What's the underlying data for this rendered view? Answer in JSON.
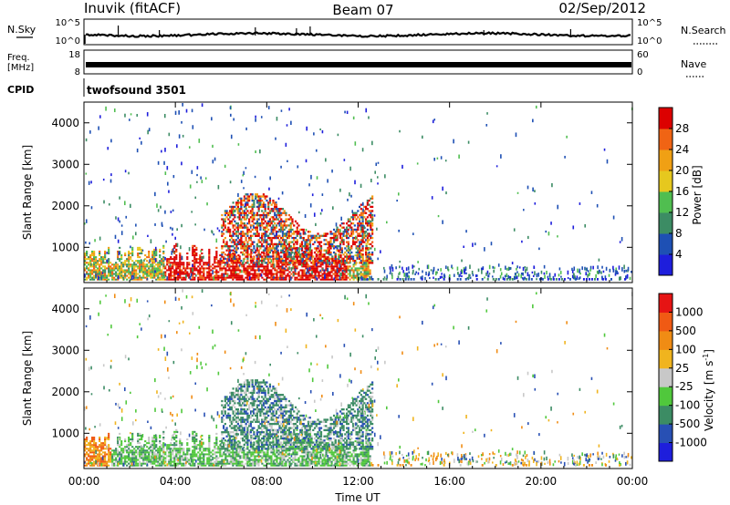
{
  "header": {
    "radar": "Inuvik (fitACF)",
    "beam": "Beam 07",
    "date": "02/Sep/2012"
  },
  "noise_panel": {
    "left_label": "N.Sky",
    "right_label": "N.Search",
    "y_ticks": [
      "10^5",
      "10^0"
    ]
  },
  "freq_panel": {
    "left_label_1": "Freq.",
    "left_label_2": "[MHz]",
    "left_ticks": [
      "18",
      "8"
    ],
    "right_label": "Nave",
    "right_ticks": [
      "60",
      "0"
    ]
  },
  "cpid": {
    "label": "CPID",
    "value": "twofsound 3501"
  },
  "chart_data": [
    {
      "type": "heatmap",
      "parameter": "power",
      "ylabel": "Slant Range [km]",
      "y_ticks": [
        1000,
        2000,
        3000,
        4000
      ],
      "ylim": [
        150,
        4500
      ],
      "x_ticks": [
        "00:00",
        "04:00",
        "08:00",
        "12:00",
        "16:00",
        "20:00",
        "00:00"
      ],
      "xlim_hours": [
        0,
        24
      ],
      "colorbar": {
        "label": "Power [dB]",
        "ticks": [
          "4",
          "8",
          "12",
          "16",
          "20",
          "24",
          "28"
        ],
        "colors": [
          "#1e1edc",
          "#1e50b4",
          "#3c8c64",
          "#50be50",
          "#e6c81e",
          "#f0a014",
          "#f06414",
          "#dc0000"
        ]
      }
    },
    {
      "type": "heatmap",
      "parameter": "velocity",
      "ylabel": "Slant Range [km]",
      "y_ticks": [
        1000,
        2000,
        3000,
        4000
      ],
      "ylim": [
        150,
        4500
      ],
      "x_ticks": [
        "00:00",
        "04:00",
        "08:00",
        "12:00",
        "16:00",
        "20:00",
        "00:00"
      ],
      "xlim_hours": [
        0,
        24
      ],
      "xlabel": "Time UT",
      "colorbar": {
        "label": "Velocity [m s",
        "label_exp": "-1",
        "label_end": "]",
        "ticks": [
          "1000",
          "500",
          "100",
          "25",
          "-25",
          "-100",
          "-500",
          "-1000"
        ],
        "colors": [
          "#1e1edc",
          "#2850b4",
          "#3c8c64",
          "#50c83c",
          "#c8c8c8",
          "#f0b41e",
          "#f08c14",
          "#f05a14",
          "#e61414"
        ]
      }
    }
  ]
}
